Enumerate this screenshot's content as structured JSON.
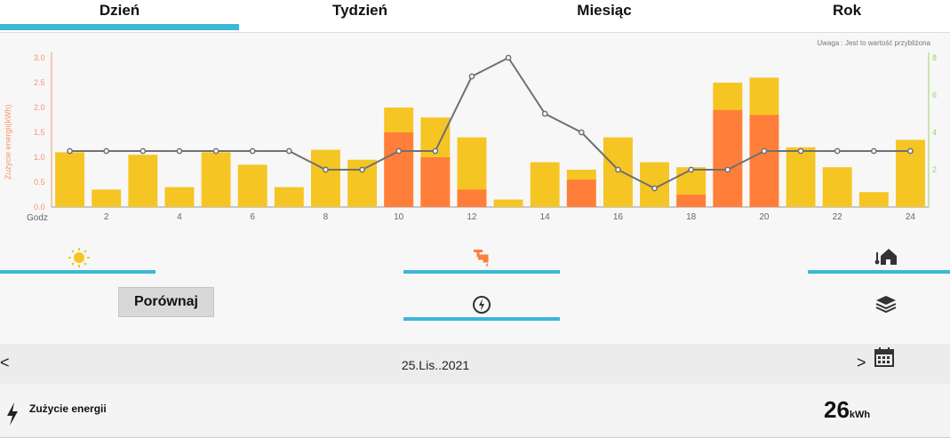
{
  "tabs": [
    {
      "label": "Dzień",
      "active": true
    },
    {
      "label": "Tydzień",
      "active": false
    },
    {
      "label": "Miesiąc",
      "active": false
    },
    {
      "label": "Rok",
      "active": false
    }
  ],
  "note": "Uwaga : Jest to wartość przybliżona",
  "chart_data": {
    "type": "bar",
    "ylabel": "Zużycie energii(kWh)",
    "xlabel": "Godz",
    "ylim": [
      0,
      3.0
    ],
    "y2lim": [
      0,
      8
    ],
    "yticks": [
      "0.0",
      "0.5",
      "1.0",
      "1.5",
      "2.0",
      "2.5",
      "3.0"
    ],
    "y2ticks": [
      "2",
      "4",
      "6",
      "8"
    ],
    "categories": [
      1,
      2,
      3,
      4,
      5,
      6,
      7,
      8,
      9,
      10,
      11,
      12,
      13,
      14,
      15,
      16,
      17,
      18,
      19,
      20,
      21,
      22,
      23,
      24
    ],
    "xtick_labels": [
      "2",
      "4",
      "6",
      "8",
      "10",
      "12",
      "14",
      "16",
      "18",
      "20",
      "22",
      "24"
    ],
    "series": [
      {
        "color": "#f5c524",
        "values": [
          1.1,
          0.35,
          1.05,
          0.4,
          1.1,
          0.85,
          0.4,
          1.15,
          0.95,
          2.0,
          1.8,
          1.4,
          0.15,
          0.9,
          0.75,
          1.4,
          0.9,
          0.8,
          2.5,
          2.6,
          1.2,
          0.8,
          0.3,
          1.35
        ]
      },
      {
        "color": "#ff7f3a",
        "values": [
          0,
          0,
          0,
          0,
          0,
          0,
          0,
          0,
          0,
          1.5,
          1.0,
          0.35,
          0,
          0,
          0.55,
          0,
          0,
          0.25,
          1.95,
          1.85,
          0,
          0,
          0,
          0
        ]
      },
      {
        "type": "line",
        "color": "#707070",
        "values": [
          3,
          3,
          3,
          3,
          3,
          3,
          3,
          2,
          2,
          3,
          3,
          7,
          8,
          5,
          4,
          2,
          1,
          2,
          2,
          3,
          3,
          3,
          3,
          3
        ]
      }
    ]
  },
  "icons": {
    "sun": "sun-icon",
    "faucet": "faucet-icon",
    "home_temp": "home-thermometer-icon",
    "power": "power-icon",
    "layers": "layers-icon",
    "calendar": "calendar-icon",
    "lightning": "lightning-icon"
  },
  "compare_label": "Porównaj",
  "date": {
    "prev": "<",
    "value": "25.Lis..2021",
    "next": ">"
  },
  "footer": {
    "label": "Zużycie energii",
    "value": "26",
    "unit": "kWh"
  }
}
